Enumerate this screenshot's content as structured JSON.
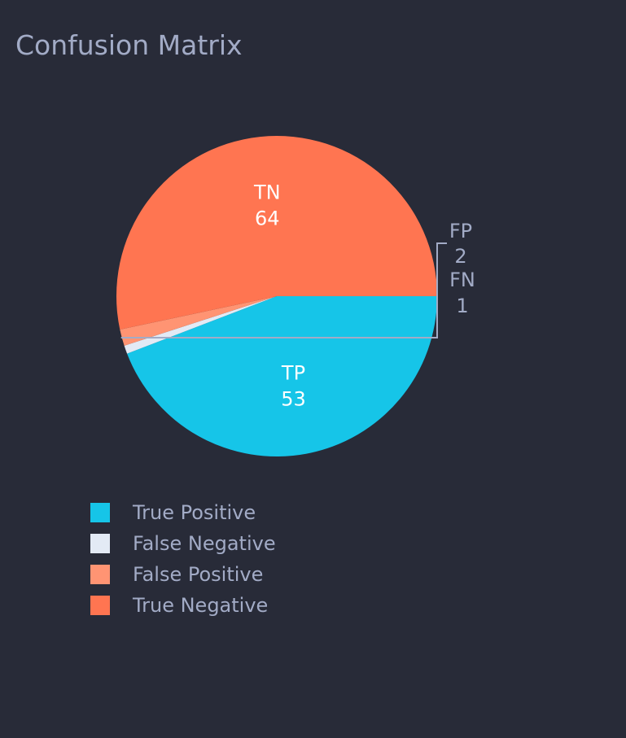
{
  "chart_data": {
    "type": "pie",
    "title": "Confusion Matrix",
    "slices": [
      {
        "key": "tp",
        "label": "TP",
        "name": "True Positive",
        "value": 53,
        "color": "#16c5e8"
      },
      {
        "key": "fn",
        "label": "FN",
        "name": "False Negative",
        "value": 1,
        "color": "#e3eaf5"
      },
      {
        "key": "fp",
        "label": "FP",
        "name": "False Positive",
        "value": 2,
        "color": "#ff9473"
      },
      {
        "key": "tn",
        "label": "TN",
        "name": "True Negative",
        "value": 64,
        "color": "#ff7551"
      }
    ],
    "legend": {
      "position": "bottom-left",
      "items": [
        "True Positive",
        "False Negative",
        "False Positive",
        "True Negative"
      ]
    },
    "background_color": "#282b38",
    "text_color": "#a2abc6"
  }
}
